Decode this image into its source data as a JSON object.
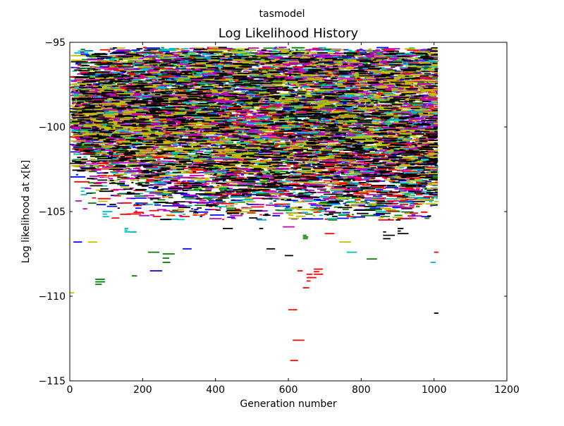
{
  "chart_data": {
    "type": "line",
    "suptitle": "tasmodel",
    "title": "Log Likelihood History",
    "xlabel": "Generation number",
    "ylabel": "Log likelihood at x[k]",
    "xlim": [
      0,
      1200
    ],
    "ylim": [
      -115,
      -95
    ],
    "xticks": [
      0,
      200,
      400,
      600,
      800,
      1000,
      1200
    ],
    "xtick_labels": [
      "0",
      "200",
      "400",
      "600",
      "800",
      "1000",
      "1200"
    ],
    "yticks": [
      -115,
      -110,
      -105,
      -100,
      -95
    ],
    "ytick_labels": [
      "−115",
      "−110",
      "−105",
      "−100",
      "−95"
    ],
    "grid": false,
    "legend": "none",
    "colors": [
      "#0000ff",
      "#008000",
      "#ff0000",
      "#00bfbf",
      "#bf00bf",
      "#bfbf00",
      "#000000"
    ],
    "series": [
      {
        "color": "#0000ff",
        "segments": [
          [
            40,
            -95.5,
            -96.8
          ],
          [
            110,
            -95.4,
            -96.2
          ],
          [
            290,
            -96.1,
            -97.0
          ],
          [
            380,
            -96.9,
            -97.8
          ],
          [
            520,
            -95.7,
            -96.6
          ],
          [
            620,
            -98.0,
            -99.6
          ],
          [
            810,
            -96.7,
            -97.5
          ],
          [
            900,
            -97.3,
            -98.4
          ],
          [
            960,
            -96.0,
            -97.0
          ],
          [
            10,
            -106.8,
            -106.8
          ],
          [
            100,
            -98.0,
            -100.5
          ],
          [
            180,
            -104.2,
            -104.8
          ],
          [
            240,
            -103.4,
            -104.0
          ],
          [
            380,
            -101.9,
            -102.8
          ],
          [
            560,
            -102.1,
            -103.0
          ],
          [
            840,
            -103.2,
            -104.2
          ],
          [
            220,
            -108.5,
            -108.5
          ],
          [
            310,
            -107.2,
            -107.2
          ],
          [
            660,
            -103.5,
            -103.5
          ],
          [
            750,
            -98.6,
            -99.4
          ]
        ]
      },
      {
        "color": "#008000",
        "segments": [
          [
            50,
            -103.3,
            -104.5
          ],
          [
            130,
            -102.8,
            -103.4
          ],
          [
            170,
            -106.2,
            -106.2
          ],
          [
            215,
            -107.4,
            -107.4
          ],
          [
            255,
            -107.5,
            -108.0
          ],
          [
            170,
            -108.8,
            -108.8
          ],
          [
            70,
            -109.0,
            -109.3
          ],
          [
            430,
            -104.8,
            -105.0
          ],
          [
            640,
            -106.4,
            -106.6
          ],
          [
            710,
            -102.4,
            -102.4
          ],
          [
            815,
            -107.8,
            -107.8
          ],
          [
            920,
            -103.6,
            -104.3
          ],
          [
            990,
            -101.1,
            -102.0
          ],
          [
            560,
            -99.6,
            -100.3
          ],
          [
            300,
            -100.2,
            -101.3
          ],
          [
            880,
            -98.2,
            -99.0
          ]
        ]
      },
      {
        "color": "#ff0000",
        "segments": [
          [
            600,
            -110.8,
            -110.8
          ],
          [
            612,
            -112.6,
            -112.6
          ],
          [
            605,
            -113.8,
            -113.8
          ],
          [
            625,
            -108.5,
            -108.5
          ],
          [
            640,
            -109.5,
            -109.5
          ],
          [
            650,
            -108.7,
            -109.1
          ],
          [
            670,
            -108.4,
            -108.7
          ],
          [
            700,
            -104.6,
            -106.3
          ],
          [
            760,
            -104.0,
            -105.3
          ],
          [
            950,
            -103.3,
            -104.0
          ],
          [
            1000,
            -107.4,
            -107.4
          ],
          [
            250,
            -100.1,
            -101.1
          ],
          [
            430,
            -99.3,
            -100.0
          ],
          [
            500,
            -100.6,
            -101.3
          ],
          [
            860,
            -101.5,
            -102.4
          ],
          [
            300,
            -103.0,
            -103.0
          ],
          [
            120,
            -101.7,
            -102.1
          ],
          [
            1000,
            -96.1,
            -97.0
          ]
        ]
      },
      {
        "color": "#00bfbf",
        "segments": [
          [
            30,
            -103.6,
            -104.0
          ],
          [
            90,
            -105.0,
            -105.3
          ],
          [
            150,
            -106.0,
            -106.2
          ],
          [
            240,
            -102.4,
            -102.4
          ],
          [
            390,
            -102.8,
            -103.3
          ],
          [
            610,
            -102.6,
            -102.6
          ],
          [
            760,
            -104.4,
            -104.4
          ],
          [
            840,
            -105.0,
            -105.0
          ],
          [
            880,
            -103.3,
            -103.3
          ],
          [
            940,
            -98.7,
            -99.8
          ],
          [
            500,
            -101.0,
            -101.8
          ],
          [
            690,
            -100.5,
            -101.2
          ],
          [
            200,
            -98.4,
            -99.2
          ],
          [
            1000,
            -102.0,
            -102.7
          ],
          [
            990,
            -108.0,
            -108.0
          ],
          [
            760,
            -107.4,
            -107.4
          ]
        ]
      },
      {
        "color": "#bf00bf",
        "segments": [
          [
            160,
            -99.6,
            -100.4
          ],
          [
            220,
            -105.2,
            -105.2
          ],
          [
            300,
            -101.1,
            -101.9
          ],
          [
            370,
            -100.4,
            -101.2
          ],
          [
            470,
            -102.3,
            -102.3
          ],
          [
            540,
            -103.5,
            -104.1
          ],
          [
            720,
            -99.6,
            -100.6
          ],
          [
            800,
            -98.0,
            -98.8
          ],
          [
            930,
            -101.3,
            -101.3
          ],
          [
            280,
            -95.6,
            -95.6
          ],
          [
            680,
            -96.5,
            -97.2
          ],
          [
            130,
            -104.5,
            -104.5
          ],
          [
            420,
            -103.0,
            -103.9
          ],
          [
            585,
            -105.9,
            -105.9
          ],
          [
            70,
            -100.8,
            -101.3
          ]
        ]
      },
      {
        "color": "#bfbf00",
        "segments": [
          [
            0,
            -109.8,
            -109.8
          ],
          [
            50,
            -106.8,
            -106.8
          ],
          [
            580,
            -95.5,
            -95.6
          ],
          [
            820,
            -95.4,
            -95.4
          ],
          [
            740,
            -106.8,
            -106.8
          ],
          [
            390,
            -97.5,
            -98.2
          ],
          [
            600,
            -104.8,
            -105.4
          ],
          [
            440,
            -101.4,
            -102.2
          ],
          [
            260,
            -103.8,
            -104.5
          ],
          [
            1000,
            -104.4,
            -104.4
          ],
          [
            780,
            -99.6,
            -100.6
          ],
          [
            130,
            -97.8,
            -98.5
          ],
          [
            910,
            -96.6,
            -97.3
          ],
          [
            350,
            -105.2,
            -105.2
          ],
          [
            480,
            -104.2,
            -104.2
          ]
        ]
      },
      {
        "color": "#000000",
        "segments": [
          [
            180,
            -95.8,
            -95.8
          ],
          [
            330,
            -95.8,
            -96.4
          ],
          [
            450,
            -96.6,
            -97.5
          ],
          [
            550,
            -96.8,
            -98.0
          ],
          [
            720,
            -97.1,
            -98.1
          ],
          [
            860,
            -96.9,
            -97.9
          ],
          [
            20,
            -101.0,
            -102.6
          ],
          [
            400,
            -104.3,
            -104.3
          ],
          [
            420,
            -106.0,
            -106.0
          ],
          [
            520,
            -106.0,
            -106.0
          ],
          [
            540,
            -107.2,
            -107.2
          ],
          [
            590,
            -107.6,
            -107.6
          ],
          [
            760,
            -104.0,
            -104.0
          ],
          [
            860,
            -106.2,
            -106.6
          ],
          [
            900,
            -106.0,
            -106.3
          ],
          [
            1000,
            -111.0,
            -111.0
          ],
          [
            180,
            -103.0,
            -103.7
          ],
          [
            650,
            -101.0,
            -101.8
          ],
          [
            320,
            -98.7,
            -99.7
          ],
          [
            970,
            -100.5,
            -101.2
          ]
        ]
      }
    ]
  }
}
